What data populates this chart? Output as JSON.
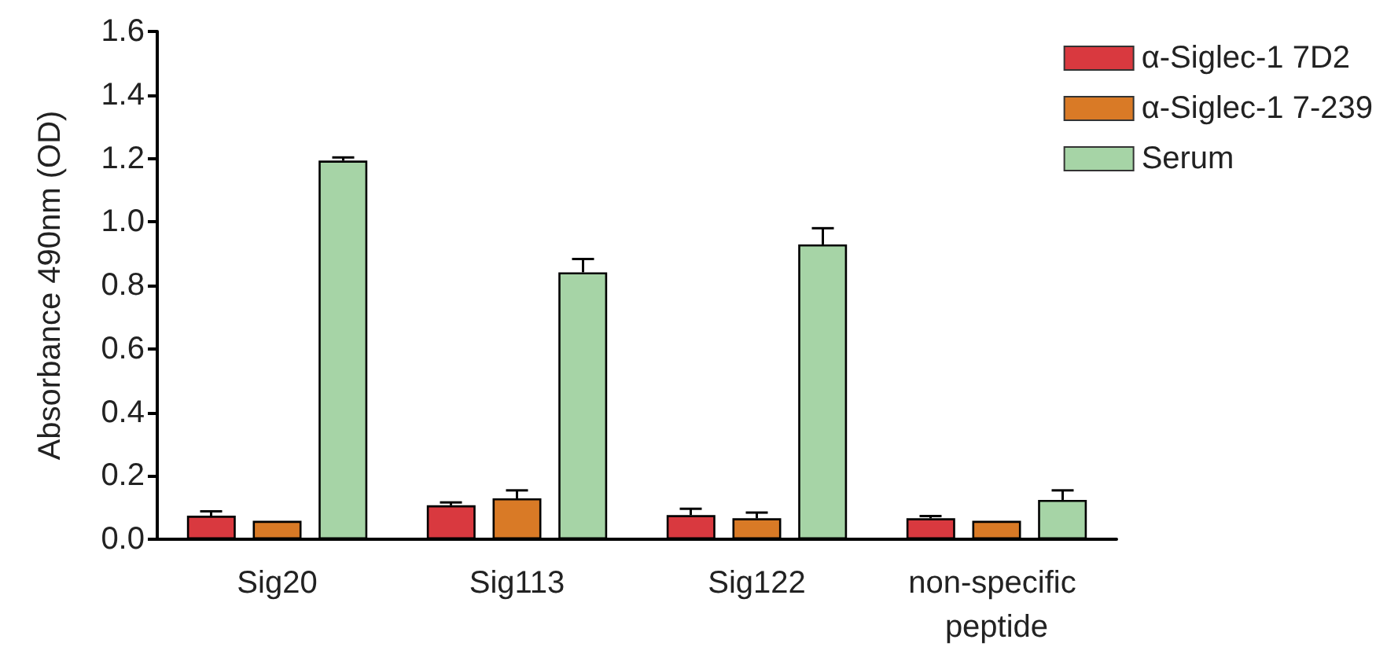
{
  "chart_data": {
    "type": "bar",
    "ylabel": "Absorbance 490nm (OD)",
    "categories": [
      "Sig20",
      "Sig113",
      "Sig122",
      "non-specific peptide"
    ],
    "series": [
      {
        "name": "α-Siglec-1 7D2",
        "color": "#d9393f",
        "values": [
          0.074,
          0.107,
          0.076,
          0.066
        ],
        "errors": [
          [
            0.074,
            0.088
          ],
          [
            0.107,
            0.116
          ],
          [
            0.076,
            0.096
          ],
          [
            0.066,
            0.073
          ]
        ]
      },
      {
        "name": "α-Siglec-1 7-239",
        "color": "#d97a26",
        "values": [
          0.058,
          0.129,
          0.066,
          0.058
        ],
        "errors": [
          null,
          [
            0.129,
            0.154
          ],
          [
            0.066,
            0.084
          ],
          null
        ]
      },
      {
        "name": "Serum",
        "color": "#a6d4a6",
        "values": [
          1.193,
          0.841,
          0.929,
          0.124
        ],
        "errors": [
          [
            1.193,
            1.203
          ],
          [
            0.841,
            0.883
          ],
          [
            0.929,
            0.98
          ],
          [
            0.124,
            0.154
          ]
        ]
      }
    ],
    "ylim": [
      0,
      1.6
    ],
    "yticks": [
      {
        "value": 0,
        "label": "0.0"
      },
      0.2,
      0.4,
      0.6,
      0.8,
      {
        "value": 1,
        "label": "1.0"
      },
      1.2,
      1.4,
      1.6
    ],
    "grid": false,
    "legend": "top right"
  }
}
